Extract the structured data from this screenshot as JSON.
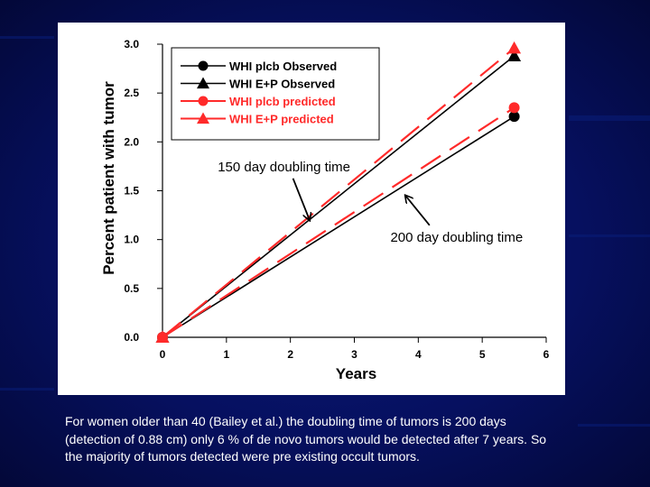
{
  "chart_data": {
    "type": "line",
    "xlabel": "Years",
    "ylabel": "Percent patient with tumor",
    "xlim": [
      0,
      6
    ],
    "ylim": [
      0,
      3.0
    ],
    "x_ticks": [
      "0",
      "1",
      "2",
      "3",
      "4",
      "5",
      "6"
    ],
    "y_ticks": [
      "0.0",
      "0.5",
      "1.0",
      "1.5",
      "2.0",
      "2.5",
      "3.0"
    ],
    "grid": false,
    "legend_position": "top-left",
    "series": [
      {
        "name": "WHI plcb Observed",
        "color": "#000000",
        "marker": "circle",
        "style": "solid",
        "x": [
          0,
          5.5
        ],
        "y": [
          0,
          2.26
        ]
      },
      {
        "name": "WHI E+P Observed",
        "color": "#000000",
        "marker": "triangle",
        "style": "solid",
        "x": [
          0,
          5.5
        ],
        "y": [
          0,
          2.88
        ]
      },
      {
        "name": "WHI plcb predicted",
        "color": "#ff2a2a",
        "marker": "circle",
        "style": "dashed",
        "x": [
          0,
          5.5
        ],
        "y": [
          0,
          2.35
        ]
      },
      {
        "name": "WHI E+P predicted",
        "color": "#ff2a2a",
        "marker": "triangle",
        "style": "dashed",
        "x": [
          0,
          5.5
        ],
        "y": [
          0,
          2.96
        ]
      }
    ],
    "annotations": [
      {
        "text": "150 day doubling time",
        "x": 1.9,
        "y": 1.7,
        "arrow_to": {
          "x": 2.3,
          "y": 1.2
        }
      },
      {
        "text": "200 day doubling time",
        "x": 4.6,
        "y": 0.98,
        "arrow_to": {
          "x": 3.8,
          "y": 1.45
        }
      }
    ]
  },
  "caption": "For women older than 40 (Bailey et al.) the doubling time of tumors is 200 days (detection of 0.88 cm) only 6 % of de novo tumors would be detected after 7 years. So the majority of tumors detected were pre existing occult tumors."
}
